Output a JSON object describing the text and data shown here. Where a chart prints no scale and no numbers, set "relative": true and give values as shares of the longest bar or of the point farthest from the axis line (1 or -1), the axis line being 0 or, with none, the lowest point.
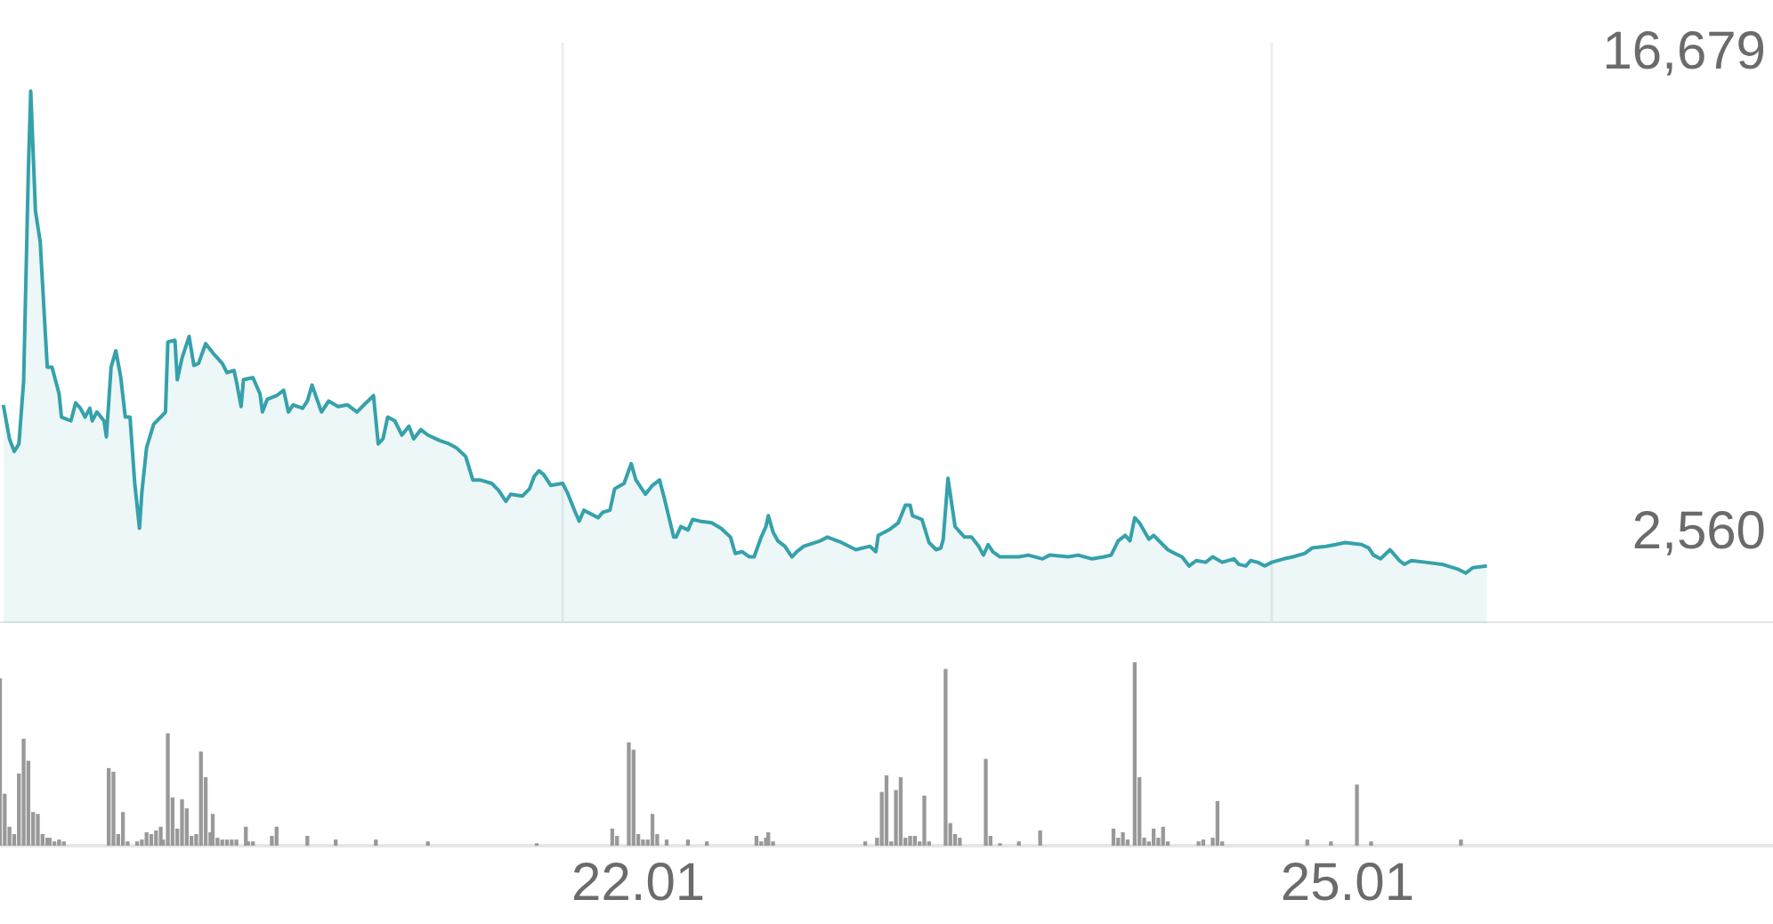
{
  "chart_data": [
    {
      "type": "area",
      "xlim": [
        19.31,
        26.81
      ],
      "ylim": [
        -70,
        17000
      ],
      "yticks": [
        {
          "value": 16679,
          "label": "16,679"
        },
        {
          "value": 2560,
          "label": "2,560"
        }
      ],
      "tick_labels": "y",
      "ref_lines": [
        {
          "axis": "x",
          "value": 21.69,
          "color": "#eeeeee"
        },
        {
          "axis": "x",
          "value": 24.69,
          "color": "#eeeeee"
        }
      ],
      "series": [
        {
          "color": "#35a1ab",
          "x": [
            19.324,
            19.35,
            19.37,
            19.39,
            19.41,
            19.43,
            19.44,
            19.46,
            19.48,
            19.5,
            19.51,
            19.53,
            19.56,
            19.57,
            19.61,
            19.63,
            19.65,
            19.67,
            19.69,
            19.7,
            19.72,
            19.75,
            19.76,
            19.78,
            19.8,
            19.82,
            19.84,
            19.86,
            19.88,
            19.9,
            19.91,
            19.93,
            19.96,
            19.99,
            20.01,
            20.02,
            20.05,
            20.06,
            20.08,
            20.11,
            20.13,
            20.15,
            20.18,
            20.21,
            20.25,
            20.27,
            20.3,
            20.31,
            20.33,
            20.34,
            20.38,
            20.41,
            20.42,
            20.44,
            20.48,
            20.51,
            20.53,
            20.55,
            20.59,
            20.61,
            20.63,
            20.67,
            20.7,
            20.74,
            20.78,
            20.82,
            20.85,
            20.89,
            20.91,
            20.93,
            20.95,
            20.98,
            21.01,
            21.04,
            21.06,
            21.09,
            21.12,
            21.17,
            21.21,
            21.24,
            21.28,
            21.31,
            21.34,
            21.39,
            21.42,
            21.45,
            21.47,
            21.52,
            21.55,
            21.57,
            21.59,
            21.61,
            21.64,
            21.69,
            21.71,
            21.74,
            21.76,
            21.78,
            21.81,
            21.84,
            21.86,
            21.89,
            21.91,
            21.95,
            21.98,
            22.0,
            22.04,
            22.07,
            22.1,
            22.12,
            22.16,
            22.17,
            22.19,
            22.22,
            22.24,
            22.27,
            22.32,
            22.36,
            22.4,
            22.42,
            22.45,
            22.48,
            22.5,
            22.53,
            22.55,
            22.56,
            22.58,
            22.6,
            22.63,
            22.66,
            22.68,
            22.71,
            22.78,
            22.81,
            22.87,
            22.93,
            22.99,
            23.015,
            23.025,
            23.07,
            23.11,
            23.14,
            23.16,
            23.17,
            23.21,
            23.24,
            23.27,
            23.29,
            23.3,
            23.32,
            23.34,
            23.35,
            23.39,
            23.42,
            23.45,
            23.47,
            23.49,
            23.51,
            23.54,
            23.62,
            23.66,
            23.72,
            23.75,
            23.83,
            23.87,
            23.93,
            23.98,
            24.01,
            24.04,
            24.07,
            24.09,
            24.11,
            24.13,
            24.17,
            24.19,
            24.22,
            24.25,
            24.28,
            24.31,
            24.34,
            24.37,
            24.41,
            24.44,
            24.48,
            24.53,
            24.55,
            24.58,
            24.6,
            24.63,
            24.66,
            24.69,
            24.74,
            24.78,
            24.83,
            24.86,
            24.92,
            24.96,
            25.0,
            25.07,
            25.1,
            25.12,
            25.15,
            25.19,
            25.21,
            25.23,
            25.25,
            25.28,
            25.34,
            25.41,
            25.48,
            25.51,
            25.54,
            25.6
          ],
          "values": [
            6350,
            5350,
            4980,
            5200,
            7040,
            13260,
            15580,
            12050,
            11150,
            8670,
            7460,
            7460,
            6670,
            5990,
            5880,
            6410,
            6250,
            5990,
            6250,
            5880,
            6140,
            5880,
            5410,
            7460,
            7940,
            7200,
            5990,
            5990,
            4040,
            2720,
            3770,
            5090,
            5780,
            5990,
            6140,
            8200,
            8250,
            7090,
            7730,
            8360,
            7510,
            7570,
            8150,
            7880,
            7570,
            7300,
            7360,
            7040,
            6300,
            7090,
            7150,
            6670,
            6140,
            6510,
            6620,
            6780,
            6140,
            6350,
            6250,
            6460,
            6930,
            6140,
            6460,
            6300,
            6350,
            6140,
            6350,
            6620,
            5200,
            5350,
            5990,
            5880,
            5460,
            5720,
            5350,
            5620,
            5460,
            5300,
            5200,
            5090,
            4830,
            4140,
            4140,
            4040,
            3830,
            3510,
            3720,
            3670,
            3880,
            4250,
            4410,
            4300,
            3980,
            4040,
            3770,
            3250,
            2930,
            3250,
            3140,
            3030,
            3190,
            3250,
            3880,
            4040,
            4620,
            4140,
            3720,
            3980,
            4140,
            3610,
            2460,
            2460,
            2770,
            2670,
            2980,
            2930,
            2880,
            2720,
            2460,
            1980,
            2030,
            1880,
            1880,
            2460,
            2770,
            3090,
            2610,
            2350,
            2190,
            1880,
            2030,
            2190,
            2350,
            2460,
            2300,
            2090,
            2190,
            2030,
            2510,
            2670,
            2880,
            3400,
            3400,
            3090,
            2980,
            2300,
            2090,
            2140,
            2400,
            4190,
            3250,
            2770,
            2460,
            2460,
            2190,
            1930,
            2240,
            2030,
            1880,
            1880,
            1930,
            1820,
            1930,
            1880,
            1930,
            1820,
            1880,
            1930,
            2350,
            2510,
            2350,
            3030,
            2880,
            2400,
            2510,
            2300,
            2090,
            1980,
            1880,
            1610,
            1770,
            1720,
            1880,
            1720,
            1820,
            1660,
            1610,
            1770,
            1720,
            1610,
            1720,
            1820,
            1880,
            1980,
            2140,
            2190,
            2240,
            2300,
            2240,
            2140,
            1930,
            1820,
            2090,
            1930,
            1770,
            1660,
            1770,
            1720,
            1660,
            1510,
            1400,
            1560,
            1610
          ]
        }
      ]
    },
    {
      "type": "bar",
      "relative": true,
      "xlim": [
        19.31,
        26.81
      ],
      "xticks": [
        22.01,
        25.01
      ],
      "tick_labels": "x",
      "color": "#999999",
      "x": [
        19.31,
        19.33,
        19.35,
        19.37,
        19.39,
        19.41,
        19.43,
        19.45,
        19.47,
        19.49,
        19.51,
        19.52,
        19.54,
        19.56,
        19.58,
        19.77,
        19.79,
        19.81,
        19.83,
        19.85,
        19.89,
        19.91,
        19.93,
        19.95,
        19.97,
        19.99,
        20.0,
        20.02,
        20.04,
        20.06,
        20.08,
        20.1,
        20.12,
        20.14,
        20.16,
        20.18,
        20.2,
        20.21,
        20.23,
        20.25,
        20.27,
        20.29,
        20.31,
        20.35,
        20.36,
        20.38,
        20.46,
        20.48,
        20.61,
        20.73,
        20.9,
        21.12,
        21.58,
        21.9,
        21.92,
        21.97,
        21.99,
        22.01,
        22.03,
        22.05,
        22.07,
        22.09,
        22.13,
        22.22,
        22.3,
        22.51,
        22.53,
        22.55,
        22.56,
        22.58,
        22.97,
        23.02,
        23.04,
        23.06,
        23.08,
        23.1,
        23.12,
        23.14,
        23.16,
        23.18,
        23.2,
        23.22,
        23.24,
        23.31,
        23.33,
        23.35,
        23.37,
        23.48,
        23.5,
        23.54,
        23.62,
        23.71,
        24.02,
        24.04,
        24.06,
        24.08,
        24.11,
        24.13,
        24.15,
        24.17,
        24.19,
        24.21,
        24.23,
        24.25,
        24.38,
        24.4,
        24.44,
        24.46,
        24.48,
        24.84,
        24.94,
        25.05,
        25.11,
        25.49
      ],
      "values": [
        0.91,
        0.28,
        0.1,
        0.06,
        0.39,
        0.58,
        0.46,
        0.18,
        0.17,
        0.06,
        0.04,
        0.04,
        0.02,
        0.03,
        0.02,
        0.42,
        0.4,
        0.06,
        0.18,
        0.02,
        0.02,
        0.03,
        0.07,
        0.06,
        0.08,
        0.1,
        0.03,
        0.61,
        0.26,
        0.09,
        0.25,
        0.2,
        0.05,
        0.06,
        0.51,
        0.37,
        0.07,
        0.17,
        0.04,
        0.03,
        0.03,
        0.03,
        0.03,
        0.1,
        0.02,
        0.02,
        0.05,
        0.1,
        0.05,
        0.03,
        0.03,
        0.02,
        0.01,
        0.09,
        0.05,
        0.56,
        0.52,
        0.06,
        0.03,
        0.03,
        0.17,
        0.06,
        0.03,
        0.03,
        0.02,
        0.05,
        0.02,
        0.04,
        0.07,
        0.02,
        0.02,
        0.04,
        0.29,
        0.38,
        0.02,
        0.3,
        0.37,
        0.04,
        0.05,
        0.05,
        0.02,
        0.27,
        0.02,
        0.96,
        0.12,
        0.06,
        0.04,
        0.47,
        0.05,
        0.01,
        0.02,
        0.08,
        0.09,
        0.04,
        0.07,
        0.03,
        1,
        0.37,
        0.04,
        0.02,
        0.09,
        0.04,
        0.1,
        0.02,
        0.02,
        0.03,
        0.04,
        0.24,
        0.02,
        0.03,
        0.02,
        0.33,
        0.02,
        0.03
      ]
    }
  ]
}
